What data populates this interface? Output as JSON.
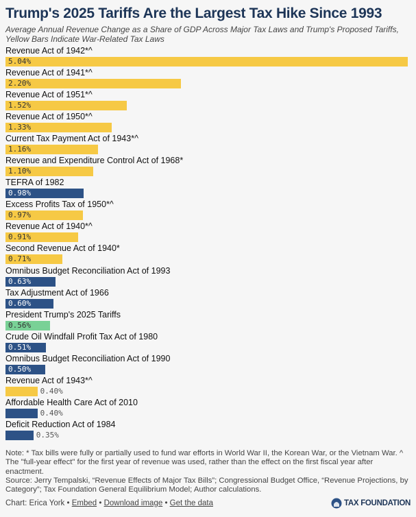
{
  "title": "Trump's 2025 Tariffs Are the Largest Tax Hike Since 1993",
  "subtitle": "Average Annual Revenue Change as a Share of GDP Across Major Tax Laws and Trump's Proposed Tariffs, Yellow Bars Indicate War-Related Tax Laws",
  "colors": {
    "war": "#f6c945",
    "nonwar": "#2d5286",
    "tariff": "#79d196",
    "title": "#1d3557"
  },
  "chart_data": {
    "type": "bar",
    "orientation": "horizontal",
    "title": "Trump's 2025 Tariffs Are the Largest Tax Hike Since 1993",
    "xlim": [
      0,
      5.04
    ],
    "grid": false,
    "categories": [
      "Revenue Act of 1942*^",
      "Revenue Act of 1941*^",
      "Revenue Act of 1951*^",
      "Revenue Act of 1950*^",
      "Current Tax Payment Act of 1943*^",
      "Revenue and Expenditure Control Act of 1968*",
      "TEFRA of 1982",
      "Excess Profits Tax of 1950*^",
      "Revenue Act of 1940*^",
      "Second Revenue Act of 1940*",
      "Omnibus Budget Reconciliation Act of 1993",
      "Tax Adjustment Act of 1966",
      "President Trump's 2025 Tariffs",
      "Crude Oil Windfall Profit Tax Act of 1980",
      "Omnibus Budget Reconciliation Act of 1990",
      "Revenue Act of 1943*^",
      "Affordable Health Care Act of 2010",
      "Deficit Reduction Act of 1984"
    ],
    "values": [
      5.04,
      2.2,
      1.52,
      1.33,
      1.16,
      1.1,
      0.98,
      0.97,
      0.91,
      0.71,
      0.63,
      0.6,
      0.56,
      0.51,
      0.5,
      0.4,
      0.4,
      0.35
    ],
    "labels": [
      "5.04%",
      "2.20%",
      "1.52%",
      "1.33%",
      "1.16%",
      "1.10%",
      "0.98%",
      "0.97%",
      "0.91%",
      "0.71%",
      "0.63%",
      "0.60%",
      "0.56%",
      "0.51%",
      "0.50%",
      "0.40%",
      "0.40%",
      "0.35%"
    ],
    "groups": [
      "war",
      "war",
      "war",
      "war",
      "war",
      "war",
      "nonwar",
      "war",
      "war",
      "war",
      "nonwar",
      "nonwar",
      "tariff",
      "nonwar",
      "nonwar",
      "war",
      "nonwar",
      "nonwar"
    ]
  },
  "note": "Note: * Tax bills were fully or partially used to fund war efforts in World War II, the Korean War, or the Vietnam War. ^ The \"full-year effect\" for the first year of revenue was used, rather than the effect on the first fiscal year after enactment.",
  "source": "Source: Jerry Tempalski, “Revenue Effects of Major Tax Bills”; Congressional Budget Office, “Revenue Projections, by Category”; Tax Foundation General Equilibrium Model; Author calculations.",
  "footer": {
    "credit": "Chart: Erica York",
    "embed": "Embed",
    "download": "Download image",
    "data": "Get the data",
    "sep": " • "
  },
  "logo": "TAX FOUNDATION"
}
